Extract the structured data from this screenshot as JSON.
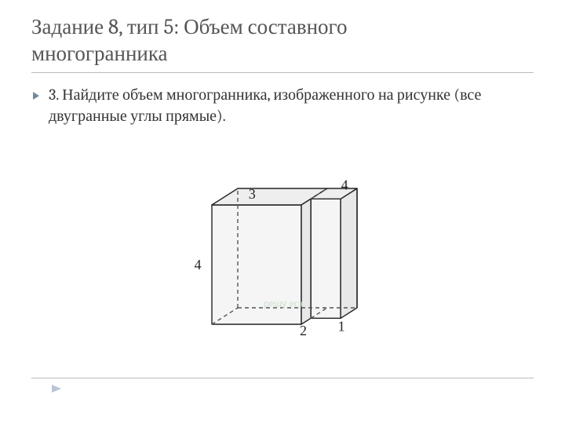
{
  "title_line1": "Задание 8, тип 5: Объем составного",
  "title_line2": "многогранника",
  "body": "3. Найдите объем многогранника, изображенного на рисунке (все двугранные углы прямые).",
  "figure": {
    "type": "infographic",
    "dims": {
      "top_left": "3",
      "top_right": "4",
      "height": "4",
      "bottom_mid": "2",
      "bottom_right": "1"
    },
    "colors": {
      "stroke": "#222222",
      "dashed": "#555555",
      "fill_front": "#f5f5f5",
      "fill_top": "#eeeeee",
      "fill_side": "#e8e8e8",
      "bg": "#ffffff"
    },
    "stroke_width": 1.4,
    "dash_pattern": "5,4",
    "watermark": "решу егэ"
  },
  "bullet_color": "#6f8aa3",
  "footer_arrow_color": "#b8c6d4"
}
